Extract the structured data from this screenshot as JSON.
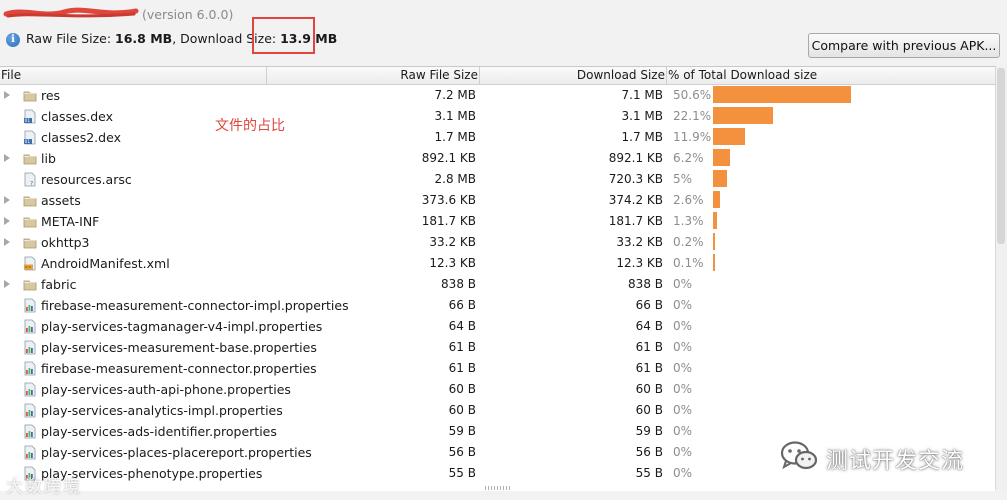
{
  "header": {
    "app_name": "",
    "version_label": "(version 6.0.0)",
    "raw_label": "Raw File Size: ",
    "raw_value": "16.8 MB",
    "download_label": ", Download Size: ",
    "download_value": "13.9 MB"
  },
  "toolbar": {
    "compare_label": "Compare with previous APK..."
  },
  "annotation_text": "文件的占比",
  "columns": {
    "file": "File",
    "raw": "Raw File Size",
    "download": "Download Size",
    "percent": "% of Total Download size"
  },
  "rows": [
    {
      "name": "res",
      "raw": "7.2 MB",
      "download": "7.1 MB",
      "percent": "50.6%",
      "pct_value": 50.6,
      "icon": "folder-icon",
      "expandable": true
    },
    {
      "name": "classes.dex",
      "raw": "3.1 MB",
      "download": "3.1 MB",
      "percent": "22.1%",
      "pct_value": 22.1,
      "icon": "dex-file-icon",
      "expandable": false
    },
    {
      "name": "classes2.dex",
      "raw": "1.7 MB",
      "download": "1.7 MB",
      "percent": "11.9%",
      "pct_value": 11.9,
      "icon": "dex-file-icon",
      "expandable": false
    },
    {
      "name": "lib",
      "raw": "892.1 KB",
      "download": "892.1 KB",
      "percent": "6.2%",
      "pct_value": 6.2,
      "icon": "folder-icon",
      "expandable": true
    },
    {
      "name": "resources.arsc",
      "raw": "2.8 MB",
      "download": "720.3 KB",
      "percent": "5%",
      "pct_value": 5,
      "icon": "unknown-file-icon",
      "expandable": false
    },
    {
      "name": "assets",
      "raw": "373.6 KB",
      "download": "374.2 KB",
      "percent": "2.6%",
      "pct_value": 2.6,
      "icon": "folder-icon",
      "expandable": true
    },
    {
      "name": "META-INF",
      "raw": "181.7 KB",
      "download": "181.7 KB",
      "percent": "1.3%",
      "pct_value": 1.3,
      "icon": "folder-icon",
      "expandable": true
    },
    {
      "name": "okhttp3",
      "raw": "33.2 KB",
      "download": "33.2 KB",
      "percent": "0.2%",
      "pct_value": 0.2,
      "icon": "folder-icon",
      "expandable": true
    },
    {
      "name": "AndroidManifest.xml",
      "raw": "12.3 KB",
      "download": "12.3 KB",
      "percent": "0.1%",
      "pct_value": 0.1,
      "icon": "xml-file-icon",
      "expandable": false
    },
    {
      "name": "fabric",
      "raw": "838 B",
      "download": "838 B",
      "percent": "0%",
      "pct_value": 0,
      "icon": "folder-icon",
      "expandable": true
    },
    {
      "name": "firebase-measurement-connector-impl.properties",
      "raw": "66 B",
      "download": "66 B",
      "percent": "0%",
      "pct_value": 0,
      "icon": "properties-file-icon",
      "expandable": false
    },
    {
      "name": "play-services-tagmanager-v4-impl.properties",
      "raw": "64 B",
      "download": "64 B",
      "percent": "0%",
      "pct_value": 0,
      "icon": "properties-file-icon",
      "expandable": false
    },
    {
      "name": "play-services-measurement-base.properties",
      "raw": "61 B",
      "download": "61 B",
      "percent": "0%",
      "pct_value": 0,
      "icon": "properties-file-icon",
      "expandable": false
    },
    {
      "name": "firebase-measurement-connector.properties",
      "raw": "61 B",
      "download": "61 B",
      "percent": "0%",
      "pct_value": 0,
      "icon": "properties-file-icon",
      "expandable": false
    },
    {
      "name": "play-services-auth-api-phone.properties",
      "raw": "60 B",
      "download": "60 B",
      "percent": "0%",
      "pct_value": 0,
      "icon": "properties-file-icon",
      "expandable": false
    },
    {
      "name": "play-services-analytics-impl.properties",
      "raw": "60 B",
      "download": "60 B",
      "percent": "0%",
      "pct_value": 0,
      "icon": "properties-file-icon",
      "expandable": false
    },
    {
      "name": "play-services-ads-identifier.properties",
      "raw": "59 B",
      "download": "59 B",
      "percent": "0%",
      "pct_value": 0,
      "icon": "properties-file-icon",
      "expandable": false
    },
    {
      "name": "play-services-places-placereport.properties",
      "raw": "56 B",
      "download": "56 B",
      "percent": "0%",
      "pct_value": 0,
      "icon": "properties-file-icon",
      "expandable": false
    },
    {
      "name": "play-services-phenotype.properties",
      "raw": "55 B",
      "download": "55 B",
      "percent": "0%",
      "pct_value": 0,
      "icon": "properties-file-icon",
      "expandable": false
    }
  ],
  "watermark": {
    "left_text": "大数跨境",
    "right_text": "测试开发交流",
    "right_logo_icon": "wechat-icon"
  },
  "colors": {
    "bar": "#f4913e",
    "highlight": "#e0463c",
    "annotation": "#e0463c",
    "percent_text": "#8d8d8d"
  }
}
